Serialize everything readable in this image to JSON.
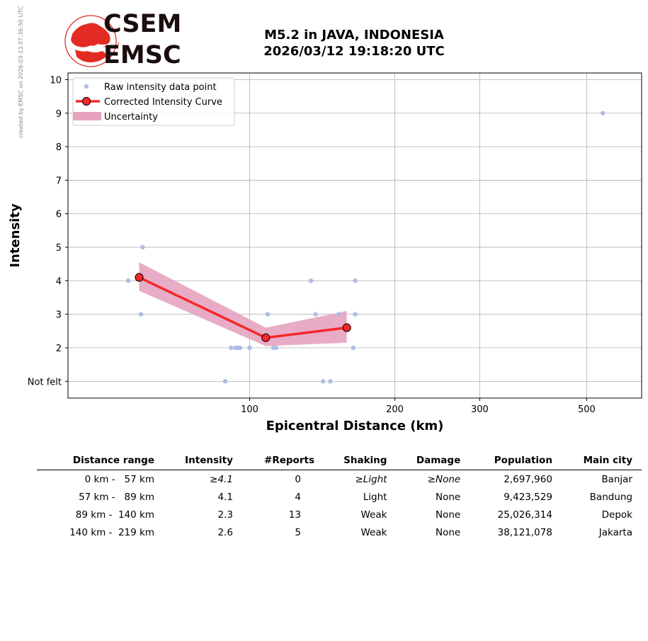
{
  "credit": "created by EMSC on 2026-03-13 07:36:50 UTC",
  "logo": {
    "line1": "CSEM",
    "line2": "EMSC",
    "accent": "#e32b23"
  },
  "header": {
    "title": "M5.2 in JAVA, INDONESIA",
    "subtitle": "2026/03/12 19:18:20 UTC"
  },
  "chart_data": {
    "type": "scatter",
    "xlabel": "Epicentral Distance (km)",
    "ylabel": "Intensity",
    "x_scale": "log",
    "xlim": [
      42,
      650
    ],
    "ylim": [
      0.5,
      10.2
    ],
    "x_ticks": [
      100,
      200,
      300,
      500
    ],
    "y_ticks": [
      1,
      2,
      3,
      4,
      5,
      6,
      7,
      8,
      9,
      10
    ],
    "y_tick_labels": [
      "Not felt",
      "2",
      "3",
      "4",
      "5",
      "6",
      "7",
      "8",
      "9",
      "10"
    ],
    "grid": true,
    "legend_position": "top-left",
    "legend": [
      "Raw intensity data point",
      "Corrected Intensity Curve",
      "Uncertainty"
    ],
    "colors": {
      "raw": "#aebde3",
      "curve": "#f5282b",
      "marker_edge": "#2a0a0a",
      "band": "#e6a3c0"
    },
    "raw_points": [
      {
        "x": 56,
        "y": 4
      },
      {
        "x": 60,
        "y": 5
      },
      {
        "x": 59.5,
        "y": 3
      },
      {
        "x": 89,
        "y": 1
      },
      {
        "x": 91.5,
        "y": 2
      },
      {
        "x": 93.5,
        "y": 2
      },
      {
        "x": 94.5,
        "y": 2
      },
      {
        "x": 95.5,
        "y": 2
      },
      {
        "x": 100,
        "y": 2
      },
      {
        "x": 109,
        "y": 3
      },
      {
        "x": 112,
        "y": 2
      },
      {
        "x": 113.5,
        "y": 2
      },
      {
        "x": 134,
        "y": 4
      },
      {
        "x": 137,
        "y": 3
      },
      {
        "x": 142,
        "y": 1
      },
      {
        "x": 147,
        "y": 1
      },
      {
        "x": 153,
        "y": 3
      },
      {
        "x": 164,
        "y": 2
      },
      {
        "x": 165.5,
        "y": 4
      },
      {
        "x": 165.5,
        "y": 3
      },
      {
        "x": 540,
        "y": 9
      }
    ],
    "curve": {
      "x": [
        59,
        108,
        159
      ],
      "y": [
        4.1,
        2.3,
        2.6
      ]
    },
    "uncertainty": {
      "x": [
        59,
        108,
        159
      ],
      "lower": [
        3.7,
        2.05,
        2.15
      ],
      "upper": [
        4.55,
        2.6,
        3.1
      ]
    }
  },
  "summary_table": {
    "columns": [
      "Distance range",
      "Intensity",
      "#Reports",
      "Shaking",
      "Damage",
      "Population",
      "Main city"
    ],
    "rows": [
      [
        "0 km -   57 km",
        "≥4.1",
        "0",
        "≥Light",
        "≥None",
        "2,697,960",
        "Banjar"
      ],
      [
        "57 km -   89 km",
        "4.1",
        "4",
        "Light",
        "None",
        "9,423,529",
        "Bandung"
      ],
      [
        "89 km -  140 km",
        "2.3",
        "13",
        "Weak",
        "None",
        "25,026,314",
        "Depok"
      ],
      [
        "140 km -  219 km",
        "2.6",
        "5",
        "Weak",
        "None",
        "38,121,078",
        "Jakarta"
      ]
    ]
  }
}
